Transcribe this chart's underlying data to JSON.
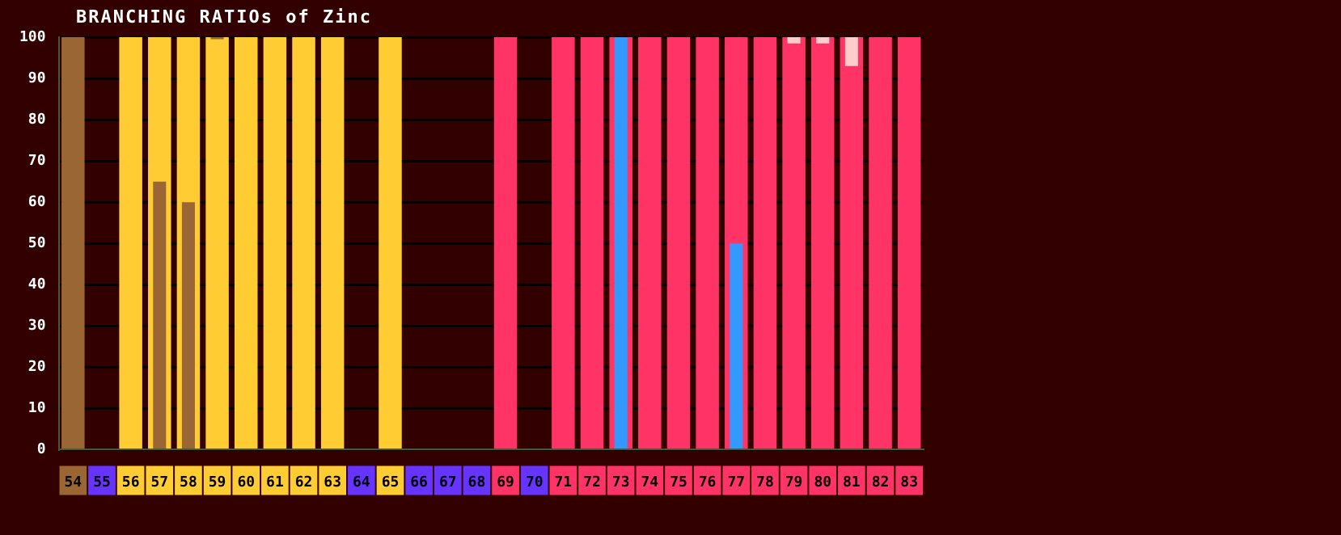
{
  "chart_data": {
    "type": "bar",
    "title": "BRANCHING RATIOs of Zinc",
    "categories": [
      "54",
      "55",
      "56",
      "57",
      "58",
      "59",
      "60",
      "61",
      "62",
      "63",
      "64",
      "65",
      "66",
      "67",
      "68",
      "69",
      "70",
      "71",
      "72",
      "73",
      "74",
      "75",
      "76",
      "77",
      "78",
      "79",
      "80",
      "81",
      "82",
      "83"
    ],
    "series": [
      {
        "color": "#9a6634",
        "values": [
          100,
          null,
          null,
          null,
          null,
          null,
          null,
          null,
          null,
          null,
          null,
          null,
          null,
          null,
          null,
          null,
          null,
          null,
          null,
          null,
          null,
          null,
          null,
          null,
          null,
          null,
          null,
          null,
          null,
          null
        ]
      },
      {
        "color": "#ffcc33",
        "values": [
          null,
          null,
          100,
          100,
          100,
          100,
          100,
          100,
          100,
          100,
          null,
          100,
          null,
          null,
          null,
          null,
          null,
          null,
          null,
          null,
          null,
          null,
          null,
          null,
          null,
          null,
          null,
          null,
          null,
          null
        ]
      },
      {
        "color": "#ff3366",
        "values": [
          null,
          null,
          null,
          null,
          null,
          null,
          null,
          null,
          null,
          null,
          null,
          null,
          null,
          null,
          null,
          100,
          null,
          100,
          100,
          100,
          100,
          100,
          100,
          100,
          100,
          100,
          100,
          100,
          100,
          100
        ]
      },
      {
        "color": "#9a6634",
        "values": [
          null,
          null,
          null,
          65,
          60,
          null,
          null,
          null,
          null,
          null,
          null,
          null,
          null,
          null,
          null,
          null,
          null,
          null,
          null,
          null,
          null,
          null,
          null,
          null,
          null,
          null,
          null,
          null,
          null,
          null
        ]
      },
      {
        "color": "#3399ff",
        "values": [
          null,
          null,
          null,
          null,
          null,
          null,
          null,
          null,
          null,
          null,
          null,
          null,
          null,
          null,
          null,
          null,
          null,
          null,
          null,
          100,
          null,
          null,
          null,
          50,
          null,
          null,
          null,
          null,
          null,
          null
        ]
      },
      {
        "color": "#9a6634",
        "base": [
          null,
          null,
          null,
          null,
          null,
          99.5,
          null,
          null,
          null,
          null,
          null,
          null,
          null,
          null,
          null,
          null,
          null,
          null,
          null,
          null,
          null,
          null,
          null,
          null,
          null,
          null,
          null,
          null,
          null,
          null
        ],
        "values": [
          null,
          null,
          null,
          null,
          null,
          0.5,
          null,
          null,
          null,
          null,
          null,
          null,
          null,
          null,
          null,
          null,
          null,
          null,
          null,
          null,
          null,
          null,
          null,
          null,
          null,
          null,
          null,
          null,
          null,
          null
        ]
      },
      {
        "color": "#ffcccc",
        "base": [
          null,
          null,
          null,
          null,
          null,
          null,
          null,
          null,
          null,
          null,
          null,
          null,
          null,
          null,
          null,
          null,
          null,
          null,
          null,
          null,
          null,
          null,
          null,
          null,
          null,
          98.5,
          98.5,
          93,
          null,
          null
        ],
        "values": [
          null,
          null,
          null,
          null,
          null,
          null,
          null,
          null,
          null,
          null,
          null,
          null,
          null,
          null,
          null,
          null,
          null,
          null,
          null,
          null,
          null,
          null,
          null,
          null,
          null,
          1.5,
          1.5,
          7,
          null,
          null
        ]
      }
    ],
    "ylim": [
      0,
      100
    ],
    "yticks": [
      0,
      10,
      20,
      30,
      40,
      50,
      60,
      70,
      80,
      90,
      100
    ],
    "grid": "y",
    "legend": false
  }
}
